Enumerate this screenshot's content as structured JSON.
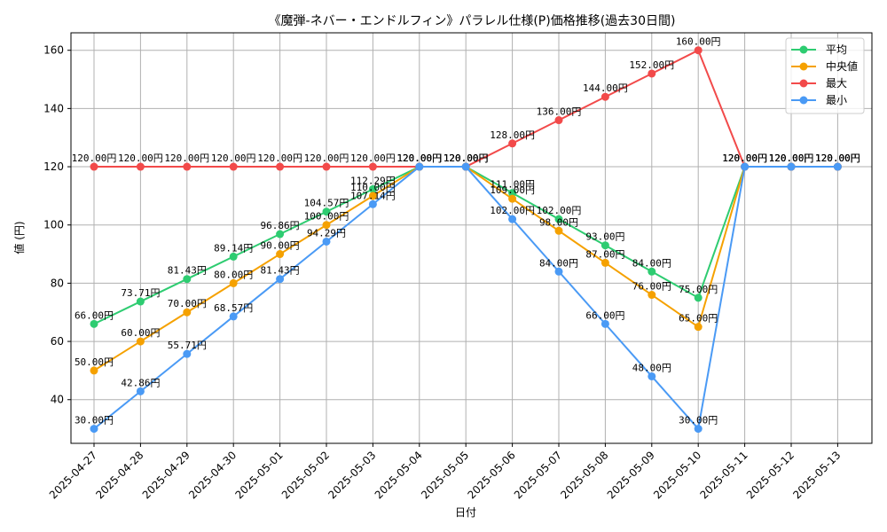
{
  "chart_data": {
    "type": "line",
    "title": "《魔弾-ネバー・エンドルフィン》パラレル仕様(P)価格推移(過去30日間)",
    "xlabel": "日付",
    "ylabel": "値 (円)",
    "ylim": [
      25,
      166
    ],
    "yticks": [
      40,
      60,
      80,
      100,
      120,
      140,
      160
    ],
    "grid": true,
    "legend_position": "top-right",
    "categories": [
      "2025-04-27",
      "2025-04-28",
      "2025-04-29",
      "2025-04-30",
      "2025-05-01",
      "2025-05-02",
      "2025-05-03",
      "2025-05-04",
      "2025-05-05",
      "2025-05-06",
      "2025-05-07",
      "2025-05-08",
      "2025-05-09",
      "2025-05-10",
      "2025-05-11",
      "2025-05-12",
      "2025-05-13"
    ],
    "series": [
      {
        "name": "平均",
        "color": "#2ecc71",
        "values": [
          66.0,
          73.71,
          81.43,
          89.14,
          96.86,
          104.57,
          112.29,
          120.0,
          120.0,
          111.0,
          102.0,
          93.0,
          84.0,
          75.0,
          120.0,
          120.0,
          120.0
        ],
        "labels": [
          "66.00円",
          "73.71円",
          "81.43円",
          "89.14円",
          "96.86円",
          "104.57円",
          "112.29円",
          "120.00円",
          "120.00円",
          "111.00円",
          "102.00円",
          "93.00円",
          "84.00円",
          "75.00円",
          "120.00円",
          "120.00円",
          "120.00円"
        ]
      },
      {
        "name": "中央値",
        "color": "#f5a100",
        "values": [
          50.0,
          60.0,
          70.0,
          80.0,
          90.0,
          100.0,
          110.0,
          120.0,
          120.0,
          109.0,
          98.0,
          87.0,
          76.0,
          65.0,
          120.0,
          120.0,
          120.0
        ],
        "labels": [
          "50.00円",
          "60.00円",
          "70.00円",
          "80.00円",
          "90.00円",
          "100.00円",
          "110.00円",
          "120.00円",
          "120.00円",
          "109.00円",
          "98.00円",
          "87.00円",
          "76.00円",
          "65.00円",
          "120.00円",
          "120.00円",
          "120.00円"
        ]
      },
      {
        "name": "最大",
        "color": "#f24a4a",
        "values": [
          120.0,
          120.0,
          120.0,
          120.0,
          120.0,
          120.0,
          120.0,
          120.0,
          120.0,
          128.0,
          136.0,
          144.0,
          152.0,
          160.0,
          120.0,
          120.0,
          120.0
        ],
        "labels": [
          "120.00円",
          "120.00円",
          "120.00円",
          "120.00円",
          "120.00円",
          "120.00円",
          "120.00円",
          "120.00円",
          "120.00円",
          "128.00円",
          "136.00円",
          "144.00円",
          "152.00円",
          "160.00円",
          "120.00円",
          "120.00円",
          "120.00円"
        ]
      },
      {
        "name": "最小",
        "color": "#4a9af5",
        "values": [
          30.0,
          42.86,
          55.71,
          68.57,
          81.43,
          94.29,
          107.14,
          120.0,
          120.0,
          102.0,
          84.0,
          66.0,
          48.0,
          30.0,
          120.0,
          120.0,
          120.0
        ],
        "labels": [
          "30.00円",
          "42.86円",
          "55.71円",
          "68.57円",
          "81.43円",
          "94.29円",
          "107.14円",
          "120.00円",
          "120.00円",
          "102.00円",
          "84.00円",
          "66.00円",
          "48.00円",
          "30.00円",
          "120.00円",
          "120.00円",
          "120.00円"
        ]
      }
    ]
  }
}
